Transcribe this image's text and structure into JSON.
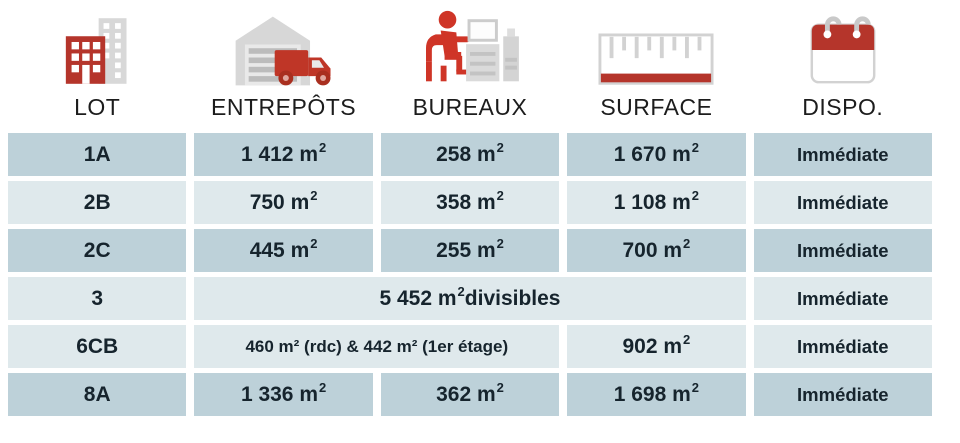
{
  "colors": {
    "accent_red": "#b5352b",
    "icon_gray": "#d6d6d6",
    "row_dark": "#bdd1d9",
    "row_light": "#dfe9ec",
    "cell_text": "#16242d"
  },
  "header": {
    "columns": [
      {
        "label": "LOT",
        "icon": "building-icon"
      },
      {
        "label": "ENTREPÔTS",
        "icon": "warehouse-truck-icon"
      },
      {
        "label": "BUREAUX",
        "icon": "office-desk-icon"
      },
      {
        "label": "SURFACE",
        "icon": "ruler-icon"
      },
      {
        "label": "DISPO.",
        "icon": "calendar-icon"
      }
    ]
  },
  "table": {
    "rows": [
      {
        "lot": "1A",
        "shade": "dark",
        "cells": [
          {
            "span": 1,
            "text": "1 412 m",
            "sup": "2"
          },
          {
            "span": 1,
            "text": "258 m",
            "sup": "2"
          },
          {
            "span": 1,
            "text": "1 670 m",
            "sup": "2"
          }
        ],
        "dispo": "Immédiate"
      },
      {
        "lot": "2B",
        "shade": "light",
        "cells": [
          {
            "span": 1,
            "text": "750 m",
            "sup": "2"
          },
          {
            "span": 1,
            "text": "358 m",
            "sup": "2"
          },
          {
            "span": 1,
            "text": "1 108 m",
            "sup": "2"
          }
        ],
        "dispo": "Immédiate"
      },
      {
        "lot": "2C",
        "shade": "dark",
        "cells": [
          {
            "span": 1,
            "text": "445 m",
            "sup": "2"
          },
          {
            "span": 1,
            "text": "255 m",
            "sup": "2"
          },
          {
            "span": 1,
            "text": "700 m",
            "sup": "2"
          }
        ],
        "dispo": "Immédiate"
      },
      {
        "lot": "3",
        "shade": "light",
        "cells": [
          {
            "span": 3,
            "text": "5 452 m",
            "sup": "2",
            "after": " divisibles"
          }
        ],
        "dispo": "Immédiate"
      },
      {
        "lot": "6CB",
        "shade": "light",
        "cells": [
          {
            "span": 2,
            "text": "460 m² (rdc) & 442 m² (1er étage)",
            "small": true
          },
          {
            "span": 1,
            "text": "902 m",
            "sup": "2"
          }
        ],
        "dispo": "Immédiate"
      },
      {
        "lot": "8A",
        "shade": "dark",
        "cells": [
          {
            "span": 1,
            "text": "1 336 m",
            "sup": "2"
          },
          {
            "span": 1,
            "text": "362 m",
            "sup": "2"
          },
          {
            "span": 1,
            "text": "1 698 m",
            "sup": "2"
          }
        ],
        "dispo": "Immédiate"
      }
    ]
  },
  "chart_data": {
    "type": "table",
    "columns": [
      "LOT",
      "ENTREPÔTS",
      "BUREAUX",
      "SURFACE",
      "DISPO."
    ],
    "rows": [
      [
        "1A",
        "1 412 m²",
        "258 m²",
        "1 670 m²",
        "Immédiate"
      ],
      [
        "2B",
        "750 m²",
        "358 m²",
        "1 108 m²",
        "Immédiate"
      ],
      [
        "2C",
        "445 m²",
        "255 m²",
        "700 m²",
        "Immédiate"
      ],
      [
        "3",
        "5 452 m² divisibles",
        "",
        "",
        "Immédiate"
      ],
      [
        "6CB",
        "460 m² (rdc) & 442 m² (1er étage)",
        "",
        "902 m²",
        "Immédiate"
      ],
      [
        "8A",
        "1 336 m²",
        "362 m²",
        "1 698 m²",
        "Immédiate"
      ]
    ],
    "merged_cells": [
      {
        "row": "3",
        "columns": [
          "ENTREPÔTS",
          "BUREAUX",
          "SURFACE"
        ],
        "text": "5 452 m² divisibles"
      },
      {
        "row": "6CB",
        "columns": [
          "ENTREPÔTS",
          "BUREAUX"
        ],
        "text": "460 m² (rdc) & 442 m² (1er étage)"
      }
    ],
    "title": "",
    "legend_position": "none",
    "grid": false
  }
}
